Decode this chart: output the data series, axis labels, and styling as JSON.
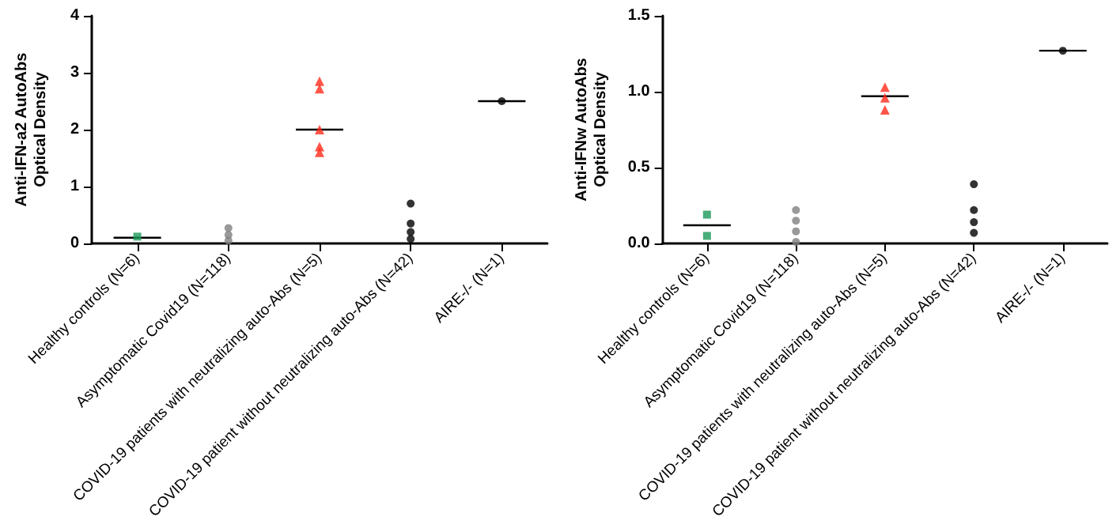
{
  "chart_data": [
    {
      "type": "scatter",
      "ylabel": "Anti-IFN-a2 AutoAbs\nOptical Density",
      "categories": [
        "Healthy controls (N=6)",
        "Asymptomatic Covid19 (N=118)",
        "COVID-19 patients with neutralizing auto-Abs (N=5)",
        "COVID-19 patient without neutralizing auto-Abs (N=42)",
        "AIRE-/- (N=1)"
      ],
      "ylim": [
        0,
        4
      ],
      "yticks": [
        0,
        1,
        2,
        3,
        4
      ],
      "grid": false,
      "series": [
        {
          "type": "scatter",
          "marker": "square",
          "color": "#1a9a5a",
          "x": [
            "Healthy controls (N=6)"
          ],
          "values": [
            0.12
          ]
        },
        {
          "type": "scatter",
          "marker": "circle",
          "color": "#808080",
          "x": [
            "Asymptomatic Covid19 (N=118)",
            "Asymptomatic Covid19 (N=118)",
            "Asymptomatic Covid19 (N=118)"
          ],
          "values": [
            0.27,
            0.15,
            0.05
          ]
        },
        {
          "type": "scatter",
          "marker": "triangle",
          "color": "#ff2a1a",
          "x": [
            "COVID-19 patients with neutralizing auto-Abs (N=5)",
            "COVID-19 patients with neutralizing auto-Abs (N=5)",
            "COVID-19 patients with neutralizing auto-Abs (N=5)",
            "COVID-19 patients with neutralizing auto-Abs (N=5)",
            "COVID-19 patients with neutralizing auto-Abs (N=5)"
          ],
          "values": [
            2.85,
            2.72,
            2.0,
            1.7,
            1.6
          ]
        },
        {
          "type": "scatter",
          "marker": "circle",
          "color": "#000000",
          "x": [
            "COVID-19 patient without neutralizing auto-Abs (N=42)",
            "COVID-19 patient without neutralizing auto-Abs (N=42)",
            "COVID-19 patient without neutralizing auto-Abs (N=42)",
            "COVID-19 patient without neutralizing auto-Abs (N=42)"
          ],
          "values": [
            0.7,
            0.35,
            0.2,
            0.08
          ]
        },
        {
          "type": "scatter",
          "marker": "circle",
          "color": "#000000",
          "x": [
            "AIRE-/- (N=1)"
          ],
          "values": [
            2.5
          ]
        },
        {
          "type": "box",
          "color": "#000000",
          "boxes": [
            {
              "low": 0.1,
              "q1": 0.1,
              "median": 0.1,
              "q3": 0.1,
              "high": 0.1
            },
            null,
            {
              "low": 2.0,
              "q1": 2.0,
              "median": 2.0,
              "q3": 2.0,
              "high": 2.0
            },
            null,
            {
              "low": 2.5,
              "q1": 2.5,
              "median": 2.5,
              "q3": 2.5,
              "high": 2.5
            }
          ]
        }
      ]
    },
    {
      "type": "scatter",
      "ylabel": "Anti-IFNw AutoAbs\nOptical Density",
      "categories": [
        "Healthy controls (N=6)",
        "Asymptomatic Covid19 (N=118)",
        "COVID-19 patients with neutralizing auto-Abs (N=5)",
        "COVID-19 patient without neutralizing auto-Abs (N=42)",
        "AIRE-/- (N=1)"
      ],
      "ylim": [
        0,
        1.5
      ],
      "yticks": [
        {
          "value": 0,
          "label": "0.0"
        },
        {
          "value": 0.5,
          "label": "0.5"
        },
        {
          "value": 1,
          "label": "1.0"
        },
        {
          "value": 1.5,
          "label": "1.5"
        }
      ],
      "grid": false,
      "series": [
        {
          "type": "scatter",
          "marker": "square",
          "color": "#1a9a5a",
          "x": [
            "Healthy controls (N=6)",
            "Healthy controls (N=6)"
          ],
          "values": [
            0.19,
            0.05
          ]
        },
        {
          "type": "scatter",
          "marker": "circle",
          "color": "#808080",
          "x": [
            "Asymptomatic Covid19 (N=118)",
            "Asymptomatic Covid19 (N=118)",
            "Asymptomatic Covid19 (N=118)",
            "Asymptomatic Covid19 (N=118)"
          ],
          "values": [
            0.22,
            0.15,
            0.08,
            0.01
          ]
        },
        {
          "type": "scatter",
          "marker": "triangle",
          "color": "#ff2a1a",
          "x": [
            "COVID-19 patients with neutralizing auto-Abs (N=5)",
            "COVID-19 patients with neutralizing auto-Abs (N=5)",
            "COVID-19 patients with neutralizing auto-Abs (N=5)"
          ],
          "values": [
            1.03,
            0.96,
            0.88
          ]
        },
        {
          "type": "scatter",
          "marker": "circle",
          "color": "#000000",
          "x": [
            "COVID-19 patient without neutralizing auto-Abs (N=42)",
            "COVID-19 patient without neutralizing auto-Abs (N=42)",
            "COVID-19 patient without neutralizing auto-Abs (N=42)",
            "COVID-19 patient without neutralizing auto-Abs (N=42)"
          ],
          "values": [
            0.39,
            0.22,
            0.14,
            0.07
          ]
        },
        {
          "type": "scatter",
          "marker": "circle",
          "color": "#000000",
          "x": [
            "AIRE-/- (N=1)"
          ],
          "values": [
            1.27
          ]
        },
        {
          "type": "box",
          "color": "#000000",
          "boxes": [
            {
              "low": 0.12,
              "q1": 0.12,
              "median": 0.12,
              "q3": 0.12,
              "high": 0.12
            },
            null,
            {
              "low": 0.97,
              "q1": 0.97,
              "median": 0.97,
              "q3": 0.97,
              "high": 0.97
            },
            null,
            {
              "low": 1.27,
              "q1": 1.27,
              "median": 1.27,
              "q3": 1.27,
              "high": 1.27
            }
          ]
        }
      ]
    }
  ]
}
